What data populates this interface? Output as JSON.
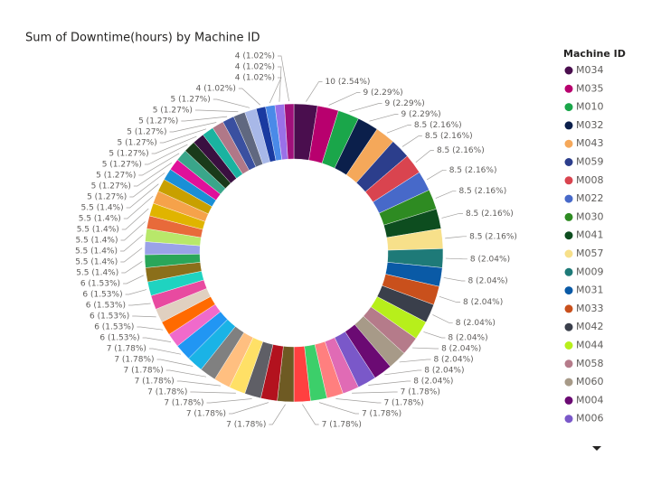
{
  "chart_data": {
    "type": "donut",
    "title": "Sum of Downtime(hours) by Machine ID",
    "legend_title": "Machine ID",
    "categories": [
      "M034",
      "M035",
      "M010",
      "M032",
      "M043",
      "M059",
      "M008",
      "M022",
      "M030",
      "M041",
      "M057",
      "M009",
      "M031",
      "M033",
      "M042",
      "M044",
      "M058",
      "M060",
      "M004",
      "M006",
      null,
      null,
      null,
      null,
      null,
      null,
      null,
      null,
      null,
      null,
      null,
      null,
      null,
      null,
      null,
      null,
      null,
      null,
      null,
      null,
      null,
      null,
      null,
      null,
      null,
      null,
      null,
      null,
      null,
      null,
      null,
      null,
      null,
      null,
      null,
      null,
      null,
      null,
      null
    ],
    "values": [
      10,
      9,
      9,
      9,
      8.5,
      8.5,
      8.5,
      8.5,
      8.5,
      8.5,
      8.5,
      8,
      8,
      8,
      8,
      8,
      8,
      8,
      8,
      8,
      7,
      7,
      7,
      7,
      7,
      7,
      7,
      7,
      7,
      7,
      7,
      7,
      6,
      6,
      6,
      6,
      6,
      6,
      5.5,
      5.5,
      5.5,
      5.5,
      5.5,
      5.5,
      5.5,
      5,
      5,
      5,
      5,
      5,
      5,
      5,
      5,
      5,
      5,
      4,
      4,
      4,
      4
    ],
    "value_labels": [
      "10 (2.54%)",
      "9 (2.29%)",
      "9 (2.29%)",
      "9 (2.29%)",
      "8.5 (2.16%)",
      "8.5 (2.16%)",
      "8.5 (2.16%)",
      "8.5 (2.16%)",
      "8.5 (2.16%)",
      "8.5 (2.16%)",
      "8.5 (2.16%)",
      "8 (2.04%)",
      "8 (2.04%)",
      "8 (2.04%)",
      "8 (2.04%)",
      "8 (2.04%)",
      "8 (2.04%)",
      "8 (2.04%)",
      "8 (2.04%)",
      "8 (2.04%)",
      "7 (1.78%)",
      "7 (1.78%)",
      "7 (1.78%)",
      "7 (1.78%)",
      "7 (1.78%)",
      "7 (1.78%)",
      "7 (1.78%)",
      "7 (1.78%)",
      "7 (1.78%)",
      "7 (1.78%)",
      "7 (1.78%)",
      "7 (1.78%)",
      "6 (1.53%)",
      "6 (1.53%)",
      "6 (1.53%)",
      "6 (1.53%)",
      "6 (1.53%)",
      "6 (1.53%)",
      "5.5 (1.4%)",
      "5.5 (1.4%)",
      "5.5 (1.4%)",
      "5.5 (1.4%)",
      "5.5 (1.4%)",
      "5.5 (1.4%)",
      "5.5 (1.4%)",
      "5 (1.27%)",
      "5 (1.27%)",
      "5 (1.27%)",
      "5 (1.27%)",
      "5 (1.27%)",
      "5 (1.27%)",
      "5 (1.27%)",
      "5 (1.27%)",
      "5 (1.27%)",
      "5 (1.27%)",
      "4 (1.02%)",
      "4 (1.02%)",
      "4 (1.02%)",
      "4 (1.02%)"
    ],
    "colors": [
      "#4a0e4e",
      "#b8006e",
      "#1aa64a",
      "#0b1f4b",
      "#f5a85a",
      "#2c3e8c",
      "#d9444f",
      "#4769c9",
      "#2e8b22",
      "#0d4d1f",
      "#f7e08a",
      "#1e7a78",
      "#0a5aa6",
      "#c9501c",
      "#3a3f4b",
      "#b7ef1b",
      "#b57b8a",
      "#a79a88",
      "#6b0a73",
      "#7a58c9",
      "#e06bb5",
      "#ff7f7f",
      "#3ccf6a",
      "#ff4040",
      "#6e5a23",
      "#b3121e",
      "#5f5f66",
      "#ffe066",
      "#ffbf80",
      "#808080",
      "#1ab3e6",
      "#2196f3",
      "#f06acb",
      "#ff6a00",
      "#e0d0c0",
      "#e84aa0",
      "#1fd3c0",
      "#8b6f1a",
      "#2aa65a",
      "#9aa2e8",
      "#b8e86a",
      "#e86a3a",
      "#e0b400",
      "#f5a24a",
      "#c8a000",
      "#1a8fd6",
      "#e0109a",
      "#3aa68a",
      "#1a3a1a",
      "#3a1040",
      "#1ab3a0",
      "#b07888",
      "#3a50a0",
      "#606880",
      "#a8b8e8",
      "#1a3aa0",
      "#4a8ae8",
      "#9a70e8",
      "#a0107a"
    ]
  }
}
